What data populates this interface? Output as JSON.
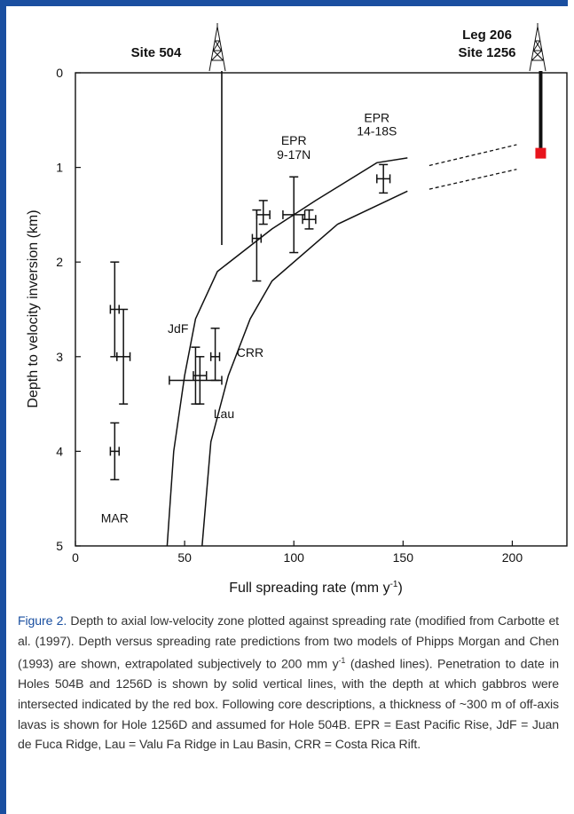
{
  "colors": {
    "frame": "#1a4fa0",
    "marker": "#e8141c",
    "line": "#111111",
    "figure_label": "#1a4fa0"
  },
  "chart_data": {
    "type": "line",
    "xlabel": "Full spreading rate (mm y",
    "xlabel_sup": "-1",
    "xlabel_end": ")",
    "ylabel": "Depth to velocity inversion (km)",
    "xlim": [
      0,
      225
    ],
    "ylim": [
      5,
      0
    ],
    "y_inverted": true,
    "xticks": [
      "0",
      "50",
      "100",
      "150",
      "200"
    ],
    "yticks": [
      "0",
      "1",
      "2",
      "3",
      "4",
      "5"
    ],
    "series": [
      {
        "points": [
          [
            42,
            5
          ],
          [
            45,
            4
          ],
          [
            50,
            3.2
          ],
          [
            55,
            2.6
          ],
          [
            65,
            2.1
          ],
          [
            90,
            1.65
          ],
          [
            110,
            1.35
          ],
          [
            138,
            0.95
          ],
          [
            152,
            0.9
          ]
        ]
      },
      {
        "points": [
          [
            58,
            5
          ],
          [
            62,
            3.9
          ],
          [
            70,
            3.2
          ],
          [
            80,
            2.6
          ],
          [
            90,
            2.2
          ],
          [
            120,
            1.6
          ],
          [
            152,
            1.25
          ]
        ]
      }
    ],
    "extrapolations": [
      {
        "points": [
          [
            162,
            0.98
          ],
          [
            202,
            0.76
          ]
        ],
        "style": "dashed"
      },
      {
        "points": [
          [
            162,
            1.23
          ],
          [
            202,
            1.02
          ]
        ],
        "style": "dashed"
      }
    ],
    "error_points": [
      {
        "x": 18,
        "y": 2.5,
        "xerr": 2,
        "ylow": 2.0,
        "yhigh": 3.0
      },
      {
        "x": 22,
        "y": 3.0,
        "xerr": 3,
        "ylow": 2.5,
        "yhigh": 3.5
      },
      {
        "x": 18,
        "y": 4.0,
        "xerr": 2,
        "ylow": 3.7,
        "yhigh": 4.3
      },
      {
        "x": 55,
        "y": 3.25,
        "xerr": 12,
        "ylow": 2.9,
        "yhigh": 3.5
      },
      {
        "x": 57,
        "y": 3.2,
        "xerr": 3,
        "ylow": 3.0,
        "yhigh": 3.5
      },
      {
        "x": 64,
        "y": 3.0,
        "xerr": 2,
        "ylow": 2.7,
        "yhigh": 3.25
      },
      {
        "x": 83,
        "y": 1.75,
        "xerr": 2,
        "ylow": 1.45,
        "yhigh": 2.2
      },
      {
        "x": 86,
        "y": 1.5,
        "xerr": 3,
        "ylow": 1.35,
        "yhigh": 1.6
      },
      {
        "x": 100,
        "y": 1.5,
        "xerr": 5,
        "ylow": 1.1,
        "yhigh": 1.9
      },
      {
        "x": 107,
        "y": 1.55,
        "xerr": 3,
        "ylow": 1.45,
        "yhigh": 1.65
      },
      {
        "x": 141,
        "y": 1.12,
        "xerr": 3,
        "ylow": 0.97,
        "yhigh": 1.27
      }
    ],
    "sites": [
      {
        "name": "Site 504",
        "x": 67,
        "hole_depth": 1.82,
        "hole_style": "thin"
      },
      {
        "name": "Site 1256",
        "x": 213,
        "hole_depth": 0.85,
        "hole_style": "thick",
        "gabbro_depth": 0.85
      }
    ],
    "site_labels": {
      "site504": "Site 504",
      "leg206": "Leg 206",
      "site1256": "Site 1256"
    },
    "annotations": [
      {
        "text": "EPR",
        "x": 138,
        "y": 0.52
      },
      {
        "text": "14-18S",
        "x": 138,
        "y": 0.66
      },
      {
        "text": "EPR",
        "x": 100,
        "y": 0.76
      },
      {
        "text": "9-17N",
        "x": 100,
        "y": 0.91
      },
      {
        "text": "JdF",
        "x": 47,
        "y": 2.75
      },
      {
        "text": "CRR",
        "x": 80,
        "y": 3.0
      },
      {
        "text": "Lau",
        "x": 68,
        "y": 3.65
      },
      {
        "text": "MAR",
        "x": 18,
        "y": 4.75
      }
    ]
  },
  "caption": {
    "figure_label": "Figure 2.",
    "text_a": " Depth to axial low-velocity zone plotted against spreading rate (modified from Carbotte et al. (1997). Depth versus spreading rate predictions from two models of Phipps Morgan and Chen (1993) are shown, extrapolated subjectively to 200 mm y",
    "text_a_sup": "-1",
    "text_b": " (dashed lines). Penetration to date in Holes 504B and 1256D is shown by solid vertical lines, with the depth at which gabbros were intersected indicated by the red box. Following core descriptions, a thickness of ~300 m of off-axis lavas is shown for Hole 1256D and assumed for Hole 504B. EPR = East Pacific Rise, JdF = Juan de Fuca Ridge, Lau = Valu Fa Ridge in Lau Basin, CRR = Costa Rica Rift."
  }
}
